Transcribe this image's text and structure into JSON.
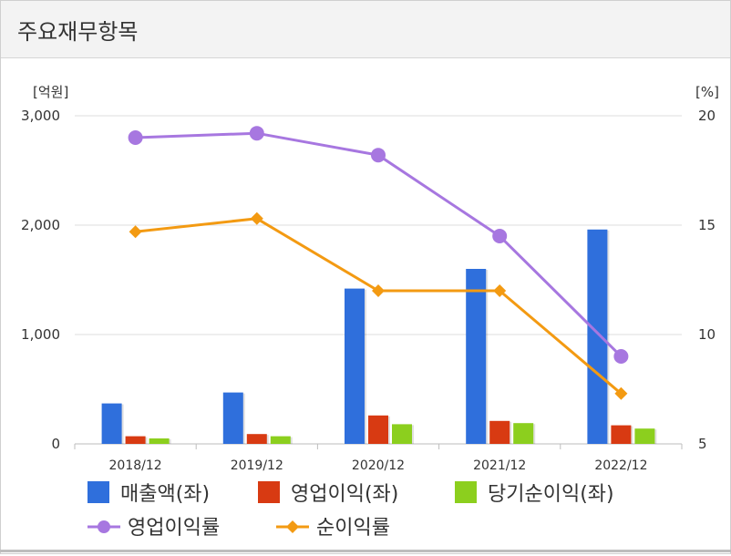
{
  "header": {
    "title": "주요재무항목"
  },
  "chart_data": {
    "type": "bar",
    "categories": [
      "2018/12",
      "2019/12",
      "2020/12",
      "2021/12",
      "2022/12"
    ],
    "left_axis": {
      "unit": "[억원]",
      "ylim": [
        0,
        3000
      ],
      "ticks": [
        0,
        1000,
        2000,
        3000
      ],
      "tick_labels": [
        "0",
        "1,000",
        "2,000",
        "3,000"
      ]
    },
    "right_axis": {
      "unit": "[%]",
      "ylim": [
        5,
        20
      ],
      "ticks": [
        5,
        10,
        15,
        20
      ],
      "tick_labels": [
        "5",
        "10",
        "15",
        "20"
      ]
    },
    "series": [
      {
        "name": "매출액(좌)",
        "kind": "bar",
        "axis": "left",
        "color": "#2f6fdc",
        "values": [
          370,
          470,
          1420,
          1600,
          1960
        ]
      },
      {
        "name": "영업이익(좌)",
        "kind": "bar",
        "axis": "left",
        "color": "#d83a12",
        "values": [
          70,
          90,
          260,
          210,
          170
        ]
      },
      {
        "name": "당기순이익(좌)",
        "kind": "bar",
        "axis": "left",
        "color": "#8ccf1e",
        "values": [
          50,
          70,
          180,
          190,
          140
        ]
      },
      {
        "name": "영업이익률",
        "kind": "line",
        "axis": "right",
        "color": "#a777e0",
        "marker": "circle",
        "values": [
          19.0,
          19.2,
          18.2,
          14.5,
          9.0
        ]
      },
      {
        "name": "순이익률",
        "kind": "line",
        "axis": "right",
        "color": "#f39a12",
        "marker": "diamond",
        "values": [
          14.7,
          15.3,
          12.0,
          12.0,
          7.3
        ]
      }
    ],
    "grid": true,
    "legend": "bottom"
  }
}
